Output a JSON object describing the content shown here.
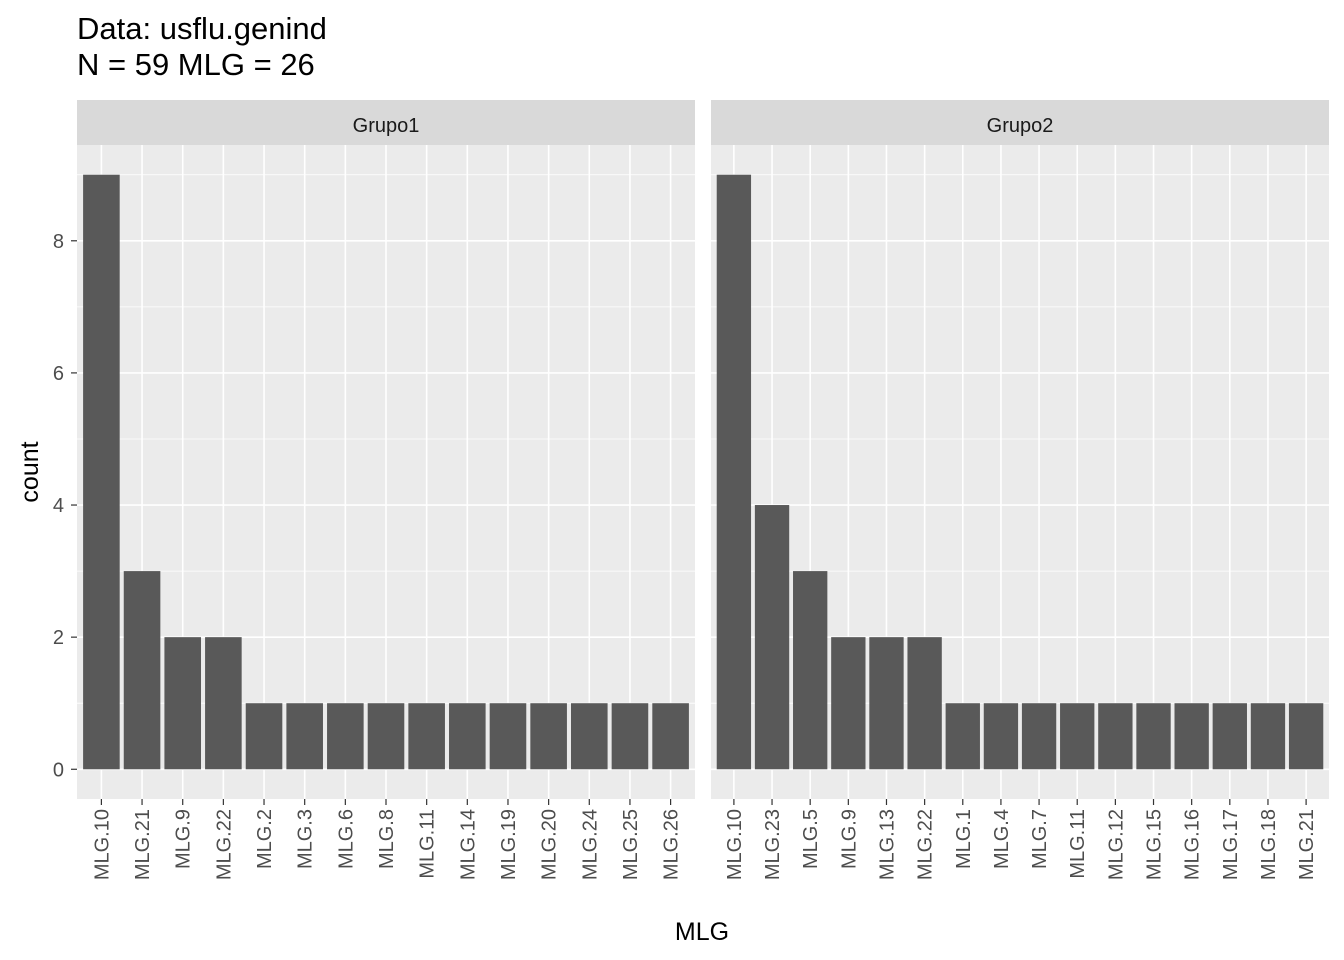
{
  "title": "Data: usflu.genind",
  "subtitle": "N = 59 MLG = 26",
  "chart_data": {
    "type": "bar",
    "xlabel": "MLG",
    "ylabel": "count",
    "ylim": [
      0,
      9
    ],
    "y_ticks": [
      0,
      2,
      4,
      6,
      8
    ],
    "grid": true,
    "bar_color": "#595959",
    "panel_background": "#ebebeb",
    "strip_background": "#d9d9d9",
    "facets": [
      {
        "name": "Grupo1",
        "categories": [
          "MLG.10",
          "MLG.21",
          "MLG.9",
          "MLG.22",
          "MLG.2",
          "MLG.3",
          "MLG.6",
          "MLG.8",
          "MLG.11",
          "MLG.14",
          "MLG.19",
          "MLG.20",
          "MLG.24",
          "MLG.25",
          "MLG.26"
        ],
        "values": [
          9,
          3,
          2,
          2,
          1,
          1,
          1,
          1,
          1,
          1,
          1,
          1,
          1,
          1,
          1
        ]
      },
      {
        "name": "Grupo2",
        "categories": [
          "MLG.10",
          "MLG.23",
          "MLG.5",
          "MLG.9",
          "MLG.13",
          "MLG.22",
          "MLG.1",
          "MLG.4",
          "MLG.7",
          "MLG.11",
          "MLG.12",
          "MLG.15",
          "MLG.16",
          "MLG.17",
          "MLG.18",
          "MLG.21"
        ],
        "values": [
          9,
          4,
          3,
          2,
          2,
          2,
          1,
          1,
          1,
          1,
          1,
          1,
          1,
          1,
          1,
          1
        ]
      }
    ]
  }
}
